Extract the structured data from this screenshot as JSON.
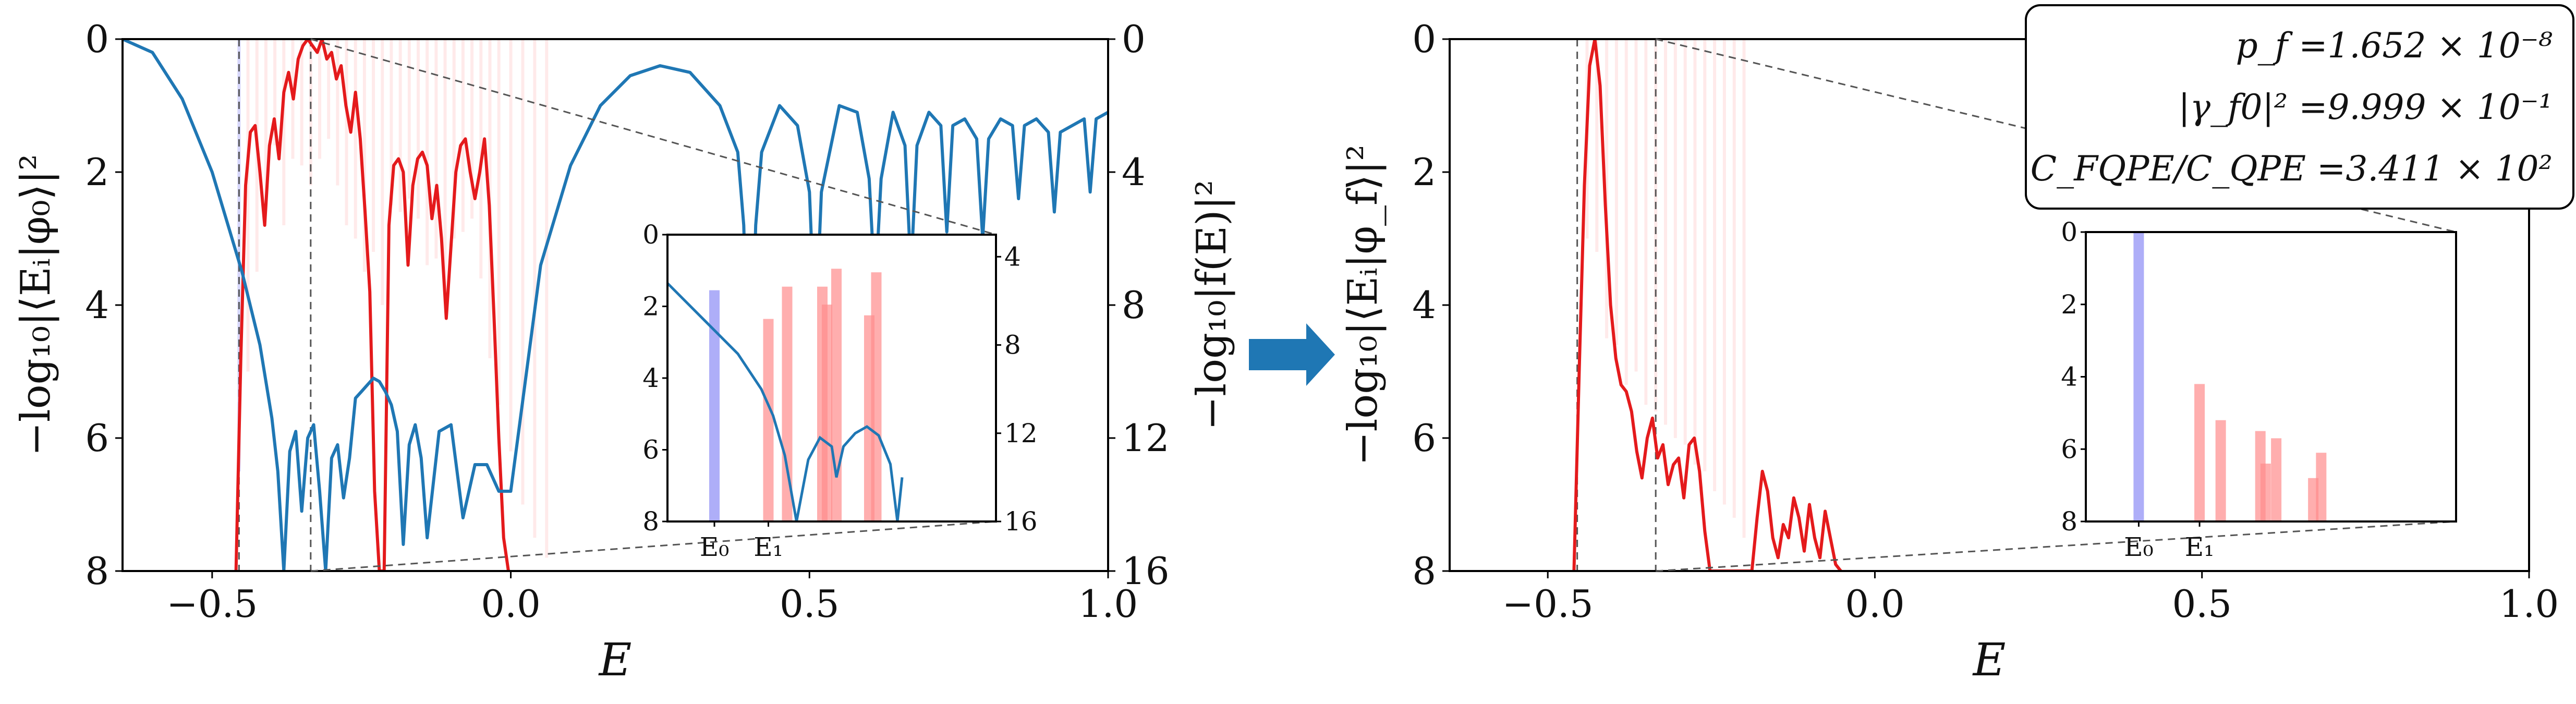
{
  "colors": {
    "curve_red": "#e41a1c",
    "curve_blue": "#1f77b4",
    "bar_red": "#ff8c8c",
    "bar_blue": "#8c8cf5",
    "arrow": "#1f77b4",
    "dashed": "#555555"
  },
  "chart_data": [
    {
      "type": "line",
      "panel": "left",
      "xlabel": "E",
      "ylabel": "−log₁₀|⟨Eᵢ|φ₀⟩|²",
      "y2label": "−log₁₀|f(E)|²",
      "xlim": [
        -0.65,
        1.0
      ],
      "ylim": [
        8,
        0
      ],
      "y2lim": [
        16,
        0
      ],
      "xticks": [
        "−0.5",
        "0.0",
        "0.5",
        "1.0"
      ],
      "yticks": [
        "0",
        "2",
        "4",
        "6",
        "8"
      ],
      "y2ticks": [
        "0",
        "4",
        "8",
        "12",
        "16"
      ],
      "dashed_x": [
        -0.455,
        -0.335
      ],
      "series": [
        {
          "color_key": "curve_red",
          "x": [
            -0.46,
            -0.452,
            -0.444,
            -0.436,
            -0.428,
            -0.42,
            -0.412,
            -0.404,
            -0.396,
            -0.388,
            -0.38,
            -0.372,
            -0.364,
            -0.356,
            -0.348,
            -0.34,
            -0.332,
            -0.324,
            -0.316,
            -0.308,
            -0.3,
            -0.292,
            -0.284,
            -0.276,
            -0.268,
            -0.26,
            -0.252,
            -0.244,
            -0.236,
            -0.228,
            -0.22,
            -0.212,
            -0.204,
            -0.196,
            -0.188,
            -0.18,
            -0.172,
            -0.164,
            -0.156,
            -0.148,
            -0.14,
            -0.132,
            -0.124,
            -0.116,
            -0.108,
            -0.1,
            -0.092,
            -0.084,
            -0.076,
            -0.068,
            -0.06,
            -0.052,
            -0.044,
            -0.036,
            -0.028,
            -0.02,
            -0.012,
            -0.004
          ],
          "y": [
            8,
            4.8,
            2.2,
            1.4,
            1.3,
            2.0,
            2.8,
            1.6,
            1.2,
            1.8,
            0.8,
            0.5,
            0.9,
            0.3,
            0.1,
            0.0,
            0.1,
            0.2,
            0.0,
            0.3,
            0.2,
            0.6,
            0.4,
            1.0,
            1.4,
            0.8,
            1.5,
            2.6,
            3.8,
            6.8,
            8.0,
            8.0,
            2.8,
            1.9,
            1.8,
            2.0,
            3.4,
            2.2,
            1.8,
            1.7,
            1.9,
            2.7,
            2.2,
            3.0,
            4.2,
            3.1,
            2.0,
            1.6,
            1.5,
            2.0,
            2.4,
            2.0,
            1.5,
            2.5,
            4.2,
            6.0,
            7.5,
            8.0
          ]
        },
        {
          "color_key": "curve_blue",
          "axis": "right",
          "x": [
            -0.65,
            -0.6,
            -0.55,
            -0.5,
            -0.45,
            -0.42,
            -0.4,
            -0.39,
            -0.38,
            -0.37,
            -0.36,
            -0.35,
            -0.34,
            -0.33,
            -0.32,
            -0.31,
            -0.3,
            -0.29,
            -0.28,
            -0.27,
            -0.26,
            -0.25,
            -0.24,
            -0.23,
            -0.22,
            -0.21,
            -0.2,
            -0.19,
            -0.18,
            -0.17,
            -0.16,
            -0.15,
            -0.14,
            -0.12,
            -0.1,
            -0.08,
            -0.06,
            -0.04,
            -0.02,
            0.0,
            0.05,
            0.1,
            0.15,
            0.2,
            0.25,
            0.3,
            0.35,
            0.38,
            0.39,
            0.4,
            0.41,
            0.42,
            0.45,
            0.48,
            0.5,
            0.51,
            0.52,
            0.55,
            0.58,
            0.6,
            0.61,
            0.62,
            0.64,
            0.66,
            0.67,
            0.68,
            0.7,
            0.72,
            0.73,
            0.74,
            0.76,
            0.78,
            0.79,
            0.8,
            0.82,
            0.84,
            0.85,
            0.86,
            0.88,
            0.9,
            0.91,
            0.92,
            0.94,
            0.96,
            0.97,
            0.98,
            1.0
          ],
          "y": [
            0.0,
            0.4,
            1.8,
            4.0,
            7.0,
            9.2,
            11.4,
            13.0,
            16.0,
            12.4,
            11.8,
            14.2,
            12.0,
            11.6,
            13.6,
            16.0,
            12.6,
            12.2,
            13.8,
            12.6,
            10.8,
            10.6,
            10.4,
            10.2,
            10.3,
            10.6,
            11.0,
            11.8,
            15.2,
            12.2,
            11.6,
            12.6,
            15.0,
            11.8,
            11.6,
            14.4,
            12.8,
            12.8,
            13.6,
            13.6,
            6.8,
            3.8,
            2.0,
            1.1,
            0.8,
            1.0,
            2.0,
            3.4,
            5.6,
            12.0,
            5.6,
            3.4,
            2.0,
            2.6,
            4.6,
            9.0,
            4.6,
            2.0,
            2.2,
            4.2,
            7.6,
            4.2,
            2.2,
            3.2,
            7.0,
            3.2,
            2.2,
            2.6,
            5.8,
            2.6,
            2.4,
            3.0,
            6.0,
            3.0,
            2.4,
            2.6,
            4.8,
            2.6,
            2.4,
            2.8,
            5.2,
            2.8,
            2.6,
            2.4,
            4.6,
            2.4,
            2.2
          ]
        }
      ],
      "bars": {
        "x": [
          -0.455,
          -0.44,
          -0.425,
          -0.41,
          -0.395,
          -0.38,
          -0.365,
          -0.35,
          -0.335,
          -0.32,
          -0.305,
          -0.29,
          -0.275,
          -0.26,
          -0.245,
          -0.23,
          -0.215,
          -0.2,
          -0.185,
          -0.17,
          -0.155,
          -0.14,
          -0.125,
          -0.11,
          -0.095,
          -0.08,
          -0.065,
          -0.05,
          -0.035,
          -0.02,
          0.0,
          0.02,
          0.04,
          0.06
        ],
        "depth": [
          6.5,
          5.0,
          3.5,
          2.5,
          1.6,
          2.8,
          1.8,
          1.9,
          2.2,
          1.8,
          1.5,
          2.2,
          2.8,
          3.0,
          3.5,
          3.2,
          4.0,
          2.5,
          2.6,
          2.4,
          2.7,
          3.4,
          3.3,
          3.9,
          3.0,
          2.9,
          2.7,
          3.6,
          4.8,
          5.5,
          6.2,
          7.0,
          7.5,
          7.8
        ],
        "blue_index": 0
      },
      "inset": {
        "xticks": [
          "E₀",
          "E₁"
        ],
        "yticks": [
          "0",
          "2",
          "4",
          "6",
          "8"
        ],
        "y2ticks": [
          "4",
          "8",
          "12",
          "16"
        ],
        "xlim": [
          -0.47,
          -0.33
        ],
        "ylim": [
          8,
          0
        ],
        "y2lim": [
          16,
          3
        ],
        "bars": [
          {
            "x": -0.45,
            "y": 1.55,
            "color_key": "bar_blue"
          },
          {
            "x": -0.427,
            "y": 2.35,
            "color_key": "bar_red"
          },
          {
            "x": -0.419,
            "y": 1.45,
            "color_key": "bar_red"
          },
          {
            "x": -0.404,
            "y": 1.45,
            "color_key": "bar_red"
          },
          {
            "x": -0.402,
            "y": 1.95,
            "color_key": "bar_red"
          },
          {
            "x": -0.398,
            "y": 0.95,
            "color_key": "bar_red"
          },
          {
            "x": -0.384,
            "y": 2.25,
            "color_key": "bar_red"
          },
          {
            "x": -0.381,
            "y": 1.05,
            "color_key": "bar_red"
          }
        ],
        "curve_x": [
          -0.47,
          -0.455,
          -0.44,
          -0.43,
          -0.425,
          -0.42,
          -0.415,
          -0.41,
          -0.405,
          -0.4,
          -0.398,
          -0.395,
          -0.39,
          -0.385,
          -0.38,
          -0.375,
          -0.372,
          -0.37
        ],
        "curve_y": [
          5.2,
          6.8,
          8.4,
          10.0,
          11.2,
          13.0,
          16.0,
          13.2,
          12.2,
          12.6,
          14.0,
          12.6,
          12.0,
          11.7,
          12.1,
          13.4,
          16.0,
          14.0
        ]
      }
    },
    {
      "type": "line",
      "panel": "right",
      "xlabel": "E",
      "ylabel": "−log₁₀|⟨Eᵢ|φ_f⟩|²",
      "xlim": [
        -0.65,
        1.0
      ],
      "ylim": [
        8,
        0
      ],
      "xticks": [
        "−0.5",
        "0.0",
        "0.5",
        "1.0"
      ],
      "yticks": [
        "0",
        "2",
        "4",
        "6",
        "8"
      ],
      "dashed_x": [
        -0.455,
        -0.335
      ],
      "series": [
        {
          "color_key": "curve_red",
          "x": [
            -0.46,
            -0.452,
            -0.444,
            -0.436,
            -0.428,
            -0.42,
            -0.412,
            -0.404,
            -0.396,
            -0.388,
            -0.38,
            -0.372,
            -0.364,
            -0.356,
            -0.348,
            -0.34,
            -0.332,
            -0.324,
            -0.316,
            -0.308,
            -0.3,
            -0.292,
            -0.284,
            -0.276,
            -0.268,
            -0.26,
            -0.252,
            -0.244,
            -0.236,
            -0.228,
            -0.22,
            -0.212,
            -0.204,
            -0.196,
            -0.188,
            -0.18,
            -0.172,
            -0.164,
            -0.156,
            -0.148,
            -0.14,
            -0.132,
            -0.124,
            -0.116,
            -0.108,
            -0.1,
            -0.092,
            -0.084,
            -0.076,
            -0.068,
            -0.06,
            -0.052
          ],
          "y": [
            8.0,
            5.0,
            2.2,
            0.4,
            0.0,
            0.7,
            2.5,
            4.0,
            4.8,
            5.2,
            5.3,
            5.6,
            6.2,
            6.6,
            6.0,
            5.7,
            6.3,
            6.1,
            6.7,
            6.4,
            6.3,
            6.9,
            6.1,
            6.0,
            6.5,
            7.4,
            8.0,
            8.0,
            8.0,
            8.0,
            8.0,
            8.0,
            8.0,
            8.0,
            8.0,
            7.2,
            6.5,
            6.8,
            7.5,
            7.8,
            7.3,
            7.5,
            6.9,
            7.2,
            7.7,
            7.0,
            7.5,
            7.8,
            7.1,
            7.5,
            7.9,
            8.0
          ]
        }
      ],
      "bars": {
        "x": [
          -0.452,
          -0.44,
          -0.425,
          -0.41,
          -0.395,
          -0.38,
          -0.365,
          -0.35,
          -0.335,
          -0.32,
          -0.305,
          -0.29,
          -0.275,
          -0.26,
          -0.245,
          -0.23,
          -0.215,
          -0.2
        ],
        "depth": [
          0.0,
          3.0,
          3.2,
          4.5,
          4.6,
          5.2,
          5.0,
          5.5,
          5.6,
          5.8,
          6.0,
          6.1,
          6.4,
          6.5,
          6.8,
          7.0,
          7.2,
          7.5
        ],
        "blue_index": 0
      },
      "inset": {
        "xticks": [
          "E₀",
          "E₁"
        ],
        "yticks": [
          "0",
          "2",
          "4",
          "6",
          "8"
        ],
        "xlim": [
          -0.47,
          -0.33
        ],
        "ylim": [
          8,
          0
        ],
        "bars": [
          {
            "x": -0.45,
            "y": 0.0,
            "color_key": "bar_blue"
          },
          {
            "x": -0.427,
            "y": 4.2,
            "color_key": "bar_red"
          },
          {
            "x": -0.419,
            "y": 5.2,
            "color_key": "bar_red"
          },
          {
            "x": -0.404,
            "y": 5.5,
            "color_key": "bar_red"
          },
          {
            "x": -0.402,
            "y": 6.4,
            "color_key": "bar_red"
          },
          {
            "x": -0.398,
            "y": 5.7,
            "color_key": "bar_red"
          },
          {
            "x": -0.384,
            "y": 6.8,
            "color_key": "bar_red"
          },
          {
            "x": -0.381,
            "y": 6.1,
            "color_key": "bar_red"
          }
        ]
      },
      "infobox": [
        "p_f =1.652 × 10⁻⁸",
        "|γ_f0|² =9.999 × 10⁻¹",
        "C_FQPE/C_QPE =3.411 × 10²"
      ]
    }
  ]
}
